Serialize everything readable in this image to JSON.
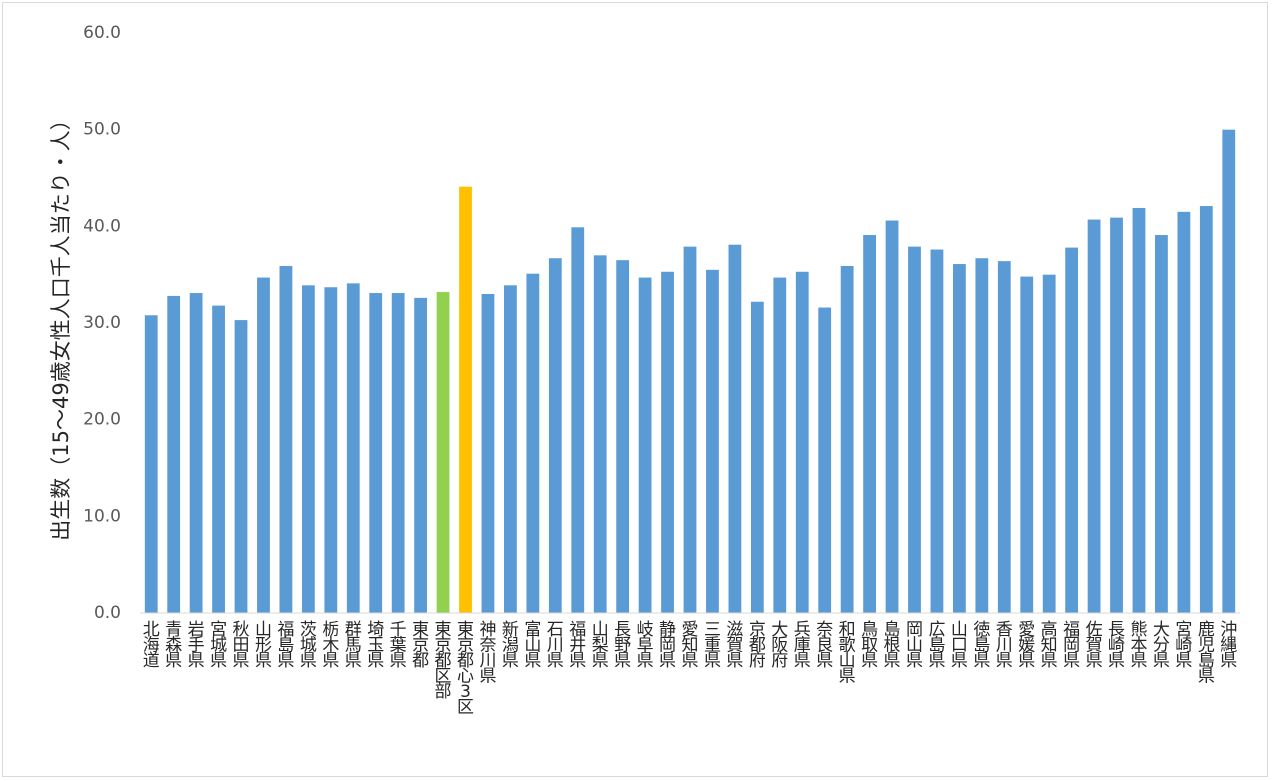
{
  "chart_data": {
    "type": "bar",
    "title": "",
    "xlabel": "",
    "ylabel": "出生数（15～49歳女性人口千人当たり・人）",
    "ylim": [
      0,
      60
    ],
    "yticks": [
      "0.0",
      "10.0",
      "20.0",
      "30.0",
      "40.0",
      "50.0",
      "60.0"
    ],
    "grid": false,
    "legend": "none",
    "colors": {
      "default": "#5b9bd5",
      "tokyo_ku": "#92d050",
      "tokyo_center3": "#ffc000"
    },
    "categories": [
      "北海道",
      "青森県",
      "岩手県",
      "宮城県",
      "秋田県",
      "山形県",
      "福島県",
      "茨城県",
      "栃木県",
      "群馬県",
      "埼玉県",
      "千葉県",
      "東京都",
      "東京都区部",
      "東京都心3区",
      "神奈川県",
      "新潟県",
      "富山県",
      "石川県",
      "福井県",
      "山梨県",
      "長野県",
      "岐阜県",
      "静岡県",
      "愛知県",
      "三重県",
      "滋賀県",
      "京都府",
      "大阪府",
      "兵庫県",
      "奈良県",
      "和歌山県",
      "鳥取県",
      "島根県",
      "岡山県",
      "広島県",
      "山口県",
      "徳島県",
      "香川県",
      "愛媛県",
      "高知県",
      "福岡県",
      "佐賀県",
      "長崎県",
      "熊本県",
      "大分県",
      "宮崎県",
      "鹿児島県",
      "沖縄県"
    ],
    "values": [
      30.8,
      32.8,
      33.1,
      31.8,
      30.3,
      34.7,
      35.9,
      33.9,
      33.7,
      34.1,
      33.1,
      33.1,
      32.6,
      33.2,
      44.1,
      33.0,
      33.9,
      35.1,
      36.7,
      39.9,
      37.0,
      36.5,
      34.7,
      35.3,
      37.9,
      35.5,
      38.1,
      32.2,
      34.7,
      35.3,
      31.6,
      35.9,
      39.1,
      40.6,
      37.9,
      37.6,
      36.1,
      36.7,
      36.4,
      34.8,
      35.0,
      37.8,
      40.7,
      40.9,
      41.9,
      39.1,
      41.5,
      42.1,
      50.0
    ],
    "bar_colors": [
      "default",
      "default",
      "default",
      "default",
      "default",
      "default",
      "default",
      "default",
      "default",
      "default",
      "default",
      "default",
      "default",
      "tokyo_ku",
      "tokyo_center3",
      "default",
      "default",
      "default",
      "default",
      "default",
      "default",
      "default",
      "default",
      "default",
      "default",
      "default",
      "default",
      "default",
      "default",
      "default",
      "default",
      "default",
      "default",
      "default",
      "default",
      "default",
      "default",
      "default",
      "default",
      "default",
      "default",
      "default",
      "default",
      "default",
      "default",
      "default",
      "default",
      "default",
      "default"
    ]
  }
}
